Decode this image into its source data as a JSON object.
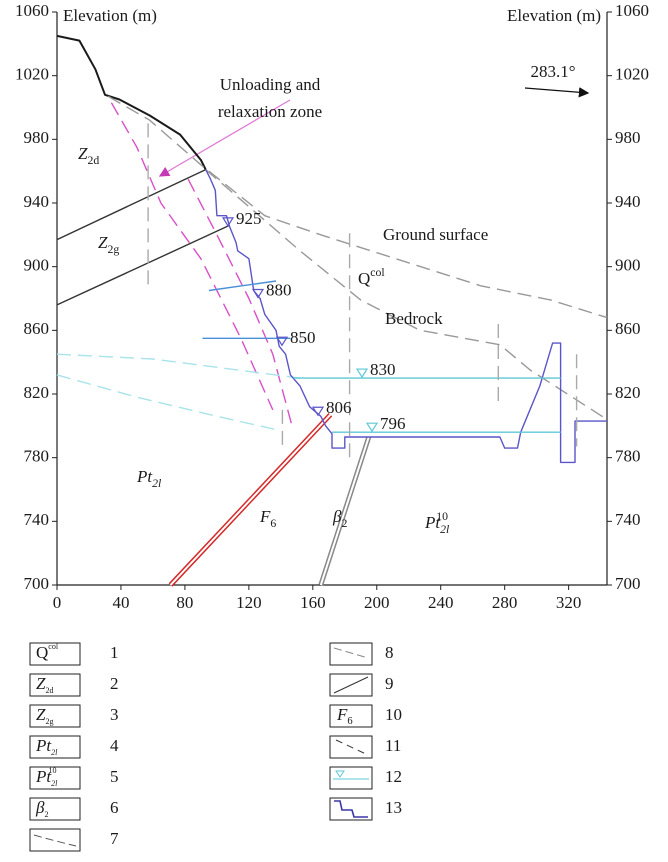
{
  "chart_data": {
    "type": "section",
    "y_label": "Elevation (m)",
    "y2_label": "Elevation (m)",
    "xlim": [
      0,
      344
    ],
    "xticks": [
      0,
      40,
      80,
      120,
      160,
      200,
      240,
      280,
      320
    ],
    "ylim": [
      700,
      1060
    ],
    "yticks": [
      700,
      740,
      780,
      820,
      860,
      900,
      940,
      980,
      1020,
      1060
    ],
    "y2lim": [
      700,
      1060
    ],
    "y2ticks": [
      700,
      740,
      780,
      820,
      860,
      900,
      940,
      980,
      1020,
      1060
    ],
    "series": [
      {
        "color": "#1a1a1a",
        "style": "bold",
        "x": [
          0,
          14,
          24,
          30,
          39,
          58,
          77,
          90,
          93
        ],
        "y": [
          1045,
          1042,
          1024,
          1008,
          1005,
          995,
          983,
          967,
          961
        ]
      },
      {
        "color": "#999999",
        "style": "dashed",
        "x": [
          32,
          58,
          90,
          130,
          165,
          215,
          265,
          309,
          344
        ],
        "y": [
          1007,
          992,
          964,
          932,
          920,
          904,
          888,
          879,
          868
        ]
      },
      {
        "color": "#999999",
        "style": "dashed",
        "x": [
          93,
          115,
          152,
          190,
          227,
          277,
          296,
          344
        ],
        "y": [
          961,
          942,
          910,
          879,
          860,
          851,
          835,
          804
        ]
      },
      {
        "color": "#333333",
        "style": "solid",
        "x": [
          0,
          93
        ],
        "y": [
          917,
          961
        ]
      },
      {
        "color": "#333333",
        "style": "solid",
        "x": [
          0,
          108
        ],
        "y": [
          876,
          926
        ]
      },
      {
        "color": "#d94fc8",
        "style": "dashed",
        "x": [
          34,
          50,
          65,
          90,
          115,
          135
        ],
        "y": [
          1003,
          975,
          940,
          905,
          855,
          810
        ]
      },
      {
        "color": "#d94fc8",
        "style": "dashed",
        "x": [
          82,
          100,
          120,
          135,
          147
        ],
        "y": [
          955,
          920,
          880,
          845,
          800
        ]
      },
      {
        "color": "#a8e4ea",
        "style": "dashed",
        "x": [
          0,
          60,
          152
        ],
        "y": [
          845,
          842,
          830
        ]
      },
      {
        "color": "#a8e4ea",
        "style": "dashed",
        "x": [
          0,
          50,
          100,
          140
        ],
        "y": [
          832,
          818,
          806,
          797
        ]
      },
      {
        "color": "#d42a2a",
        "style": "double",
        "x": [
          71,
          171
        ],
        "y": [
          700,
          807
        ]
      },
      {
        "color": "#888888",
        "style": "double",
        "x": [
          165,
          195
        ],
        "y": [
          700,
          793
        ]
      },
      {
        "color": "#5b55c9",
        "style": "solid",
        "x": [
          93,
          96,
          99,
          100,
          106,
          108,
          112,
          113,
          120,
          123,
          127,
          130,
          137,
          139,
          143,
          146,
          152,
          158,
          165,
          168,
          172,
          172,
          180,
          180,
          277,
          280,
          288,
          290,
          302,
          310,
          315,
          315,
          324,
          324,
          344
        ],
        "y": [
          961,
          955,
          948,
          932,
          932,
          925,
          915,
          910,
          905,
          885,
          880,
          870,
          860,
          850,
          845,
          832,
          825,
          812,
          806,
          800,
          795,
          786,
          786,
          793,
          793,
          786,
          786,
          796,
          825,
          852,
          852,
          777,
          777,
          803,
          803
        ]
      },
      {
        "color": "#5ec8d6",
        "style": "solid",
        "x": [
          148,
          315
        ],
        "y": [
          830,
          830
        ]
      },
      {
        "color": "#5ec8d6",
        "style": "solid",
        "x": [
          172,
          315
        ],
        "y": [
          796,
          796
        ]
      },
      {
        "color": "#4a90d9",
        "style": "solid",
        "x": [
          95,
          137
        ],
        "y": [
          885,
          891
        ]
      },
      {
        "color": "#4a90d9",
        "style": "solid",
        "x": [
          91,
          146
        ],
        "y": [
          855,
          855
        ]
      },
      {
        "color": "#aaaaaa",
        "style": "dashed",
        "x": [
          57,
          57
        ],
        "y": [
          990,
          887
        ]
      },
      {
        "color": "#aaaaaa",
        "style": "dashed",
        "x": [
          183,
          183
        ],
        "y": [
          921,
          780
        ]
      },
      {
        "color": "#aaaaaa",
        "style": "dashed",
        "x": [
          276,
          276
        ],
        "y": [
          864,
          815
        ]
      },
      {
        "color": "#aaaaaa",
        "style": "dashed",
        "x": [
          325,
          325
        ],
        "y": [
          845,
          787
        ]
      },
      {
        "color": "#aaaaaa",
        "style": "dashed",
        "x": [
          141,
          141
        ],
        "y": [
          810,
          788
        ]
      }
    ],
    "water_levels": [
      925,
      880,
      850,
      830,
      806,
      796
    ],
    "annotations": {
      "zone": [
        "Unloading and",
        "relaxation zone"
      ],
      "direction": "283.1°",
      "ground": "Ground surface",
      "bedrock": "Bedrock"
    },
    "units": {
      "z2d": {
        "base": "Z",
        "sub": "2d"
      },
      "z2g": {
        "base": "Z",
        "sub": "2g"
      },
      "qcol": {
        "base": "Q",
        "sup": "col"
      },
      "pt2l": {
        "base": "Pt",
        "sub": "2l"
      },
      "f6": {
        "base": "F",
        "sub": "6"
      },
      "beta2": {
        "base": "β",
        "sub": "2"
      },
      "pt2l10": {
        "base": "Pt",
        "sub": "2l",
        "sup": "10"
      }
    },
    "legend": [
      {
        "symbol": {
          "base": "Q",
          "sup": "col"
        },
        "label": 1
      },
      {
        "symbol": {
          "base": "Z",
          "sub": "2d"
        },
        "label": 2
      },
      {
        "symbol": {
          "base": "Z",
          "sub": "2g"
        },
        "label": 3
      },
      {
        "symbol": {
          "base": "Pt",
          "sub": "2l"
        },
        "label": 4
      },
      {
        "symbol": {
          "base": "Pt",
          "sub": "2l",
          "sup": "10"
        },
        "label": 5
      },
      {
        "symbol": {
          "base": "β",
          "sub": "2"
        },
        "label": 6
      },
      {
        "label": 7
      },
      {
        "label": 8
      },
      {
        "label": 9
      },
      {
        "symbol": {
          "base": "F",
          "sub": "6"
        },
        "label": 10
      },
      {
        "label": 11
      },
      {
        "label": 12
      },
      {
        "label": 13
      }
    ]
  }
}
